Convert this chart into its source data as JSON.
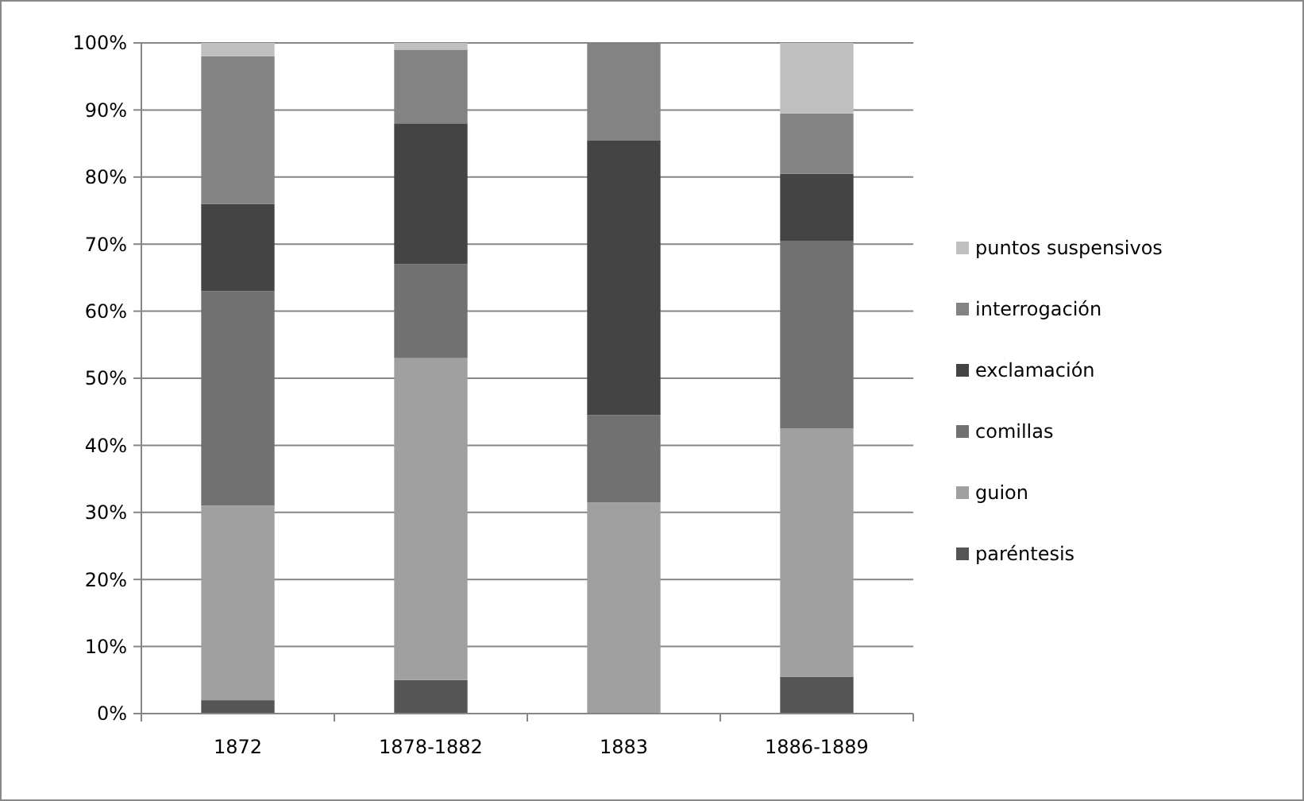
{
  "chart_data": {
    "type": "bar",
    "stacked": true,
    "categories": [
      "1872",
      "1878-1882",
      "1883",
      "1886-1889"
    ],
    "series": [
      {
        "name": "paréntesis",
        "color": "#555555",
        "values": [
          2,
          5,
          0,
          5.5
        ]
      },
      {
        "name": "guion",
        "color": "#a0a0a0",
        "values": [
          29,
          48,
          31.5,
          37
        ]
      },
      {
        "name": "comillas",
        "color": "#717171",
        "values": [
          32,
          14,
          13,
          28
        ]
      },
      {
        "name": "exclamación",
        "color": "#444444",
        "values": [
          13,
          21,
          41,
          10
        ]
      },
      {
        "name": "interrogación",
        "color": "#838383",
        "values": [
          22,
          11,
          14.5,
          9
        ]
      },
      {
        "name": "puntos suspensivos",
        "color": "#c0c0c0",
        "values": [
          2,
          1,
          0,
          10.5
        ]
      }
    ],
    "ylim": [
      0,
      100
    ],
    "yticks": [
      {
        "value": 0,
        "label": "0%"
      },
      {
        "value": 10,
        "label": "10%"
      },
      {
        "value": 20,
        "label": "20%"
      },
      {
        "value": 30,
        "label": "30%"
      },
      {
        "value": 40,
        "label": "40%"
      },
      {
        "value": 50,
        "label": "50%"
      },
      {
        "value": 60,
        "label": "60%"
      },
      {
        "value": 70,
        "label": "70%"
      },
      {
        "value": 80,
        "label": "80%"
      },
      {
        "value": 90,
        "label": "90%"
      },
      {
        "value": 100,
        "label": "100%"
      }
    ],
    "grid": "y",
    "legend": "right"
  }
}
